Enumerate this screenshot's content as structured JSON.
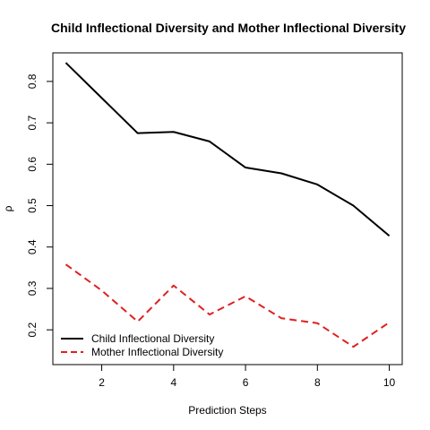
{
  "chart_data": {
    "type": "line",
    "title": "Child Inflectional Diversity and Mother Inflectional Diversity",
    "xlabel": "Prediction Steps",
    "ylabel": "ρ",
    "xlim": [
      0.64,
      10.36
    ],
    "ylim": [
      0.116,
      0.869
    ],
    "x_ticks": [
      2,
      4,
      6,
      8,
      10
    ],
    "y_ticks": [
      0.2,
      0.3,
      0.4,
      0.5,
      0.6,
      0.7,
      0.8
    ],
    "x_tick_labels": [
      "2",
      "4",
      "6",
      "8",
      "10"
    ],
    "y_tick_labels": [
      "0.2",
      "0.3",
      "0.4",
      "0.5",
      "0.6",
      "0.7",
      "0.8"
    ],
    "x": [
      1,
      2,
      3,
      4,
      5,
      6,
      7,
      8,
      9,
      10
    ],
    "grid": false,
    "legend_position": "bottom-left",
    "series": [
      {
        "name": "Child Inflectional Diversity",
        "color": "#000000",
        "style": "solid",
        "values": [
          0.845,
          0.76,
          0.675,
          0.678,
          0.655,
          0.592,
          0.578,
          0.551,
          0.5,
          0.427
        ]
      },
      {
        "name": "Mother Inflectional Diversity",
        "color": "#DF2020",
        "style": "dashed",
        "values": [
          0.358,
          0.295,
          0.22,
          0.307,
          0.237,
          0.281,
          0.228,
          0.216,
          0.159,
          0.218
        ]
      }
    ]
  }
}
